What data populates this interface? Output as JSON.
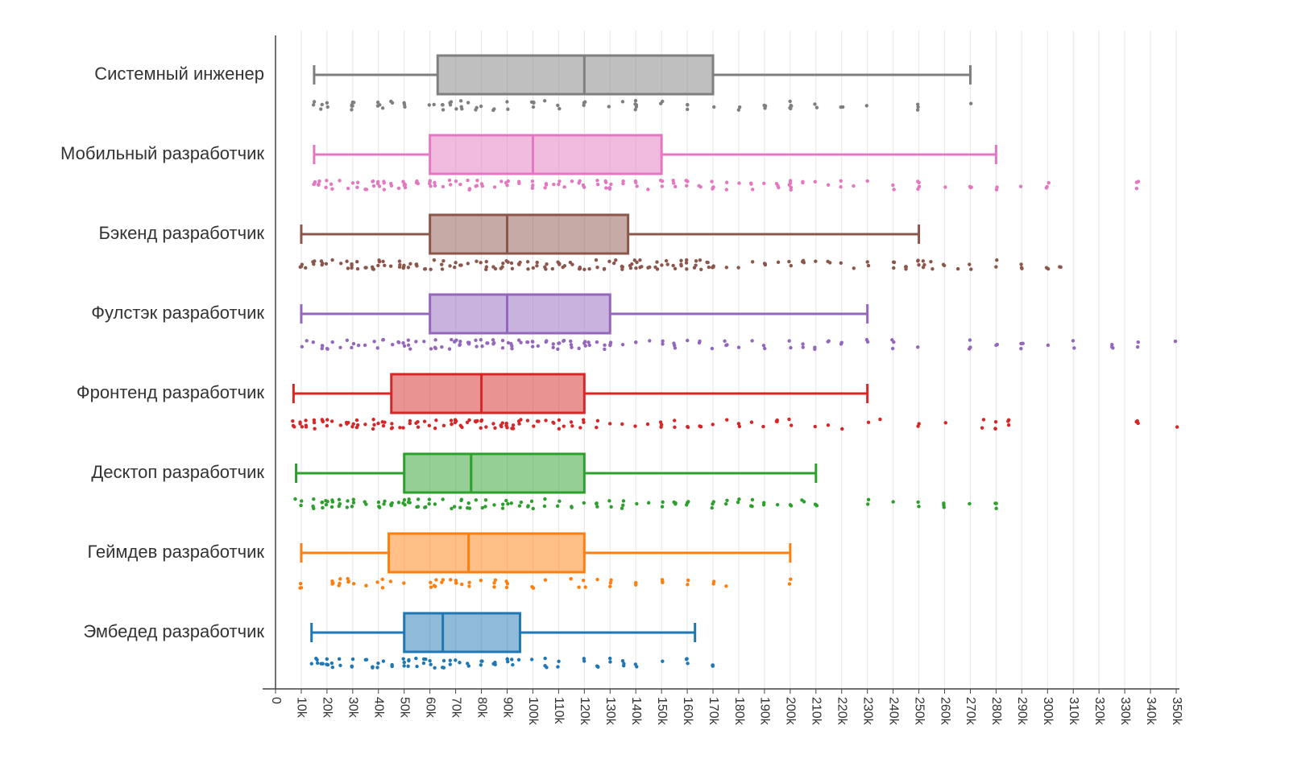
{
  "chart_data": {
    "type": "box",
    "orientation": "horizontal",
    "grid": true,
    "xlim": [
      0,
      350000
    ],
    "x_ticks": [
      0,
      10000,
      20000,
      30000,
      40000,
      50000,
      60000,
      70000,
      80000,
      90000,
      100000,
      110000,
      120000,
      130000,
      140000,
      150000,
      160000,
      170000,
      180000,
      190000,
      200000,
      210000,
      220000,
      230000,
      240000,
      250000,
      260000,
      270000,
      280000,
      290000,
      300000,
      310000,
      320000,
      330000,
      340000,
      350000
    ],
    "x_tick_labels": [
      "0",
      "10k",
      "20k",
      "30k",
      "40k",
      "50k",
      "60k",
      "70k",
      "80k",
      "90k",
      "100k",
      "110k",
      "120k",
      "130k",
      "140k",
      "150k",
      "160k",
      "170k",
      "180k",
      "190k",
      "200k",
      "210k",
      "220k",
      "230k",
      "240k",
      "250k",
      "260k",
      "270k",
      "280k",
      "290k",
      "300k",
      "310k",
      "320k",
      "330k",
      "340k",
      "350k"
    ],
    "series": [
      {
        "name": "Системный инженер",
        "color": "#7f7f7f",
        "whisker_low": 15000,
        "q1": 63000,
        "median": 120000,
        "q3": 170000,
        "whisker_high": 270000,
        "points": [
          15000,
          18000,
          20000,
          20000,
          30000,
          30000,
          40000,
          42000,
          45000,
          50000,
          60000,
          62000,
          65000,
          68000,
          70000,
          72000,
          75000,
          78000,
          80000,
          85000,
          90000,
          100000,
          100000,
          105000,
          110000,
          120000,
          120000,
          120000,
          130000,
          135000,
          140000,
          140000,
          150000,
          150000,
          160000,
          160000,
          170000,
          180000,
          190000,
          200000,
          200000,
          210000,
          220000,
          230000,
          250000,
          250000,
          270000
        ]
      },
      {
        "name": "Мобильный разработчик",
        "color": "#e377c2",
        "whisker_low": 15000,
        "q1": 60000,
        "median": 100000,
        "q3": 150000,
        "whisker_high": 280000,
        "points": [
          15000,
          17000,
          20000,
          22000,
          25000,
          28000,
          30000,
          32000,
          35000,
          38000,
          40000,
          42000,
          45000,
          48000,
          50000,
          50000,
          55000,
          60000,
          60000,
          62000,
          65000,
          68000,
          70000,
          72000,
          75000,
          78000,
          80000,
          80000,
          85000,
          88000,
          90000,
          90000,
          95000,
          100000,
          100000,
          105000,
          108000,
          110000,
          112000,
          115000,
          118000,
          120000,
          120000,
          125000,
          128000,
          130000,
          130000,
          135000,
          140000,
          140000,
          145000,
          150000,
          150000,
          155000,
          160000,
          160000,
          165000,
          170000,
          170000,
          175000,
          180000,
          185000,
          190000,
          195000,
          200000,
          200000,
          205000,
          210000,
          215000,
          220000,
          225000,
          230000,
          240000,
          250000,
          250000,
          260000,
          270000,
          280000,
          290000,
          300000,
          335000
        ]
      },
      {
        "name": "Бэкенд разработчик",
        "color": "#8c564b",
        "whisker_low": 10000,
        "q1": 60000,
        "median": 90000,
        "q3": 137000,
        "whisker_high": 250000,
        "points": [
          10000,
          12000,
          15000,
          18000,
          20000,
          22000,
          25000,
          28000,
          30000,
          32000,
          35000,
          38000,
          40000,
          42000,
          45000,
          48000,
          50000,
          52000,
          55000,
          58000,
          60000,
          62000,
          65000,
          68000,
          70000,
          72000,
          75000,
          78000,
          80000,
          82000,
          85000,
          88000,
          90000,
          92000,
          95000,
          98000,
          100000,
          102000,
          105000,
          108000,
          110000,
          112000,
          115000,
          118000,
          120000,
          122000,
          125000,
          128000,
          130000,
          132000,
          135000,
          138000,
          140000,
          142000,
          145000,
          148000,
          150000,
          152000,
          155000,
          158000,
          160000,
          163000,
          165000,
          168000,
          170000,
          175000,
          180000,
          185000,
          190000,
          195000,
          200000,
          205000,
          210000,
          215000,
          220000,
          225000,
          230000,
          240000,
          245000,
          250000,
          252000,
          255000,
          260000,
          265000,
          270000,
          280000,
          290000,
          300000,
          305000
        ]
      },
      {
        "name": "Фулстэк разработчик",
        "color": "#9467bd",
        "whisker_low": 10000,
        "q1": 60000,
        "median": 90000,
        "q3": 130000,
        "whisker_high": 230000,
        "points": [
          10000,
          12000,
          15000,
          18000,
          20000,
          22000,
          25000,
          28000,
          30000,
          32000,
          35000,
          38000,
          40000,
          42000,
          45000,
          48000,
          50000,
          52000,
          55000,
          58000,
          60000,
          62000,
          65000,
          68000,
          70000,
          72000,
          75000,
          78000,
          80000,
          82000,
          85000,
          88000,
          90000,
          92000,
          95000,
          98000,
          100000,
          102000,
          105000,
          108000,
          110000,
          112000,
          115000,
          118000,
          120000,
          122000,
          125000,
          128000,
          130000,
          135000,
          140000,
          145000,
          150000,
          155000,
          160000,
          165000,
          170000,
          175000,
          180000,
          185000,
          190000,
          200000,
          205000,
          210000,
          215000,
          220000,
          230000,
          240000,
          250000,
          270000,
          280000,
          290000,
          300000,
          310000,
          325000,
          335000,
          350000
        ]
      },
      {
        "name": "Фронтенд разработчик",
        "color": "#d62728",
        "whisker_low": 7000,
        "q1": 45000,
        "median": 80000,
        "q3": 120000,
        "whisker_high": 230000,
        "points": [
          7000,
          10000,
          12000,
          15000,
          18000,
          20000,
          22000,
          25000,
          28000,
          30000,
          32000,
          35000,
          38000,
          40000,
          42000,
          45000,
          48000,
          50000,
          52000,
          55000,
          58000,
          60000,
          62000,
          65000,
          68000,
          70000,
          72000,
          75000,
          78000,
          80000,
          82000,
          85000,
          88000,
          90000,
          92000,
          95000,
          98000,
          100000,
          102000,
          105000,
          108000,
          110000,
          112000,
          115000,
          118000,
          120000,
          125000,
          130000,
          135000,
          140000,
          145000,
          150000,
          155000,
          160000,
          165000,
          170000,
          175000,
          180000,
          185000,
          190000,
          195000,
          200000,
          210000,
          215000,
          220000,
          230000,
          235000,
          250000,
          260000,
          275000,
          280000,
          285000,
          335000,
          350000
        ]
      },
      {
        "name": "Десктоп разработчик",
        "color": "#2ca02c",
        "whisker_low": 8000,
        "q1": 50000,
        "median": 76000,
        "q3": 120000,
        "whisker_high": 210000,
        "points": [
          8000,
          10000,
          15000,
          18000,
          20000,
          22000,
          25000,
          28000,
          30000,
          35000,
          40000,
          42000,
          45000,
          48000,
          50000,
          52000,
          55000,
          58000,
          60000,
          62000,
          65000,
          68000,
          70000,
          72000,
          75000,
          78000,
          80000,
          82000,
          85000,
          88000,
          90000,
          92000,
          95000,
          98000,
          100000,
          105000,
          110000,
          115000,
          120000,
          125000,
          130000,
          135000,
          140000,
          145000,
          150000,
          155000,
          160000,
          170000,
          175000,
          180000,
          185000,
          190000,
          195000,
          200000,
          205000,
          210000,
          230000,
          240000,
          250000,
          260000,
          270000,
          280000
        ]
      },
      {
        "name": "Геймдев разработчик",
        "color": "#ff7f0e",
        "whisker_low": 10000,
        "q1": 44000,
        "median": 75000,
        "q3": 120000,
        "whisker_high": 200000,
        "points": [
          10000,
          22000,
          25000,
          28000,
          30000,
          35000,
          40000,
          42000,
          45000,
          50000,
          60000,
          62000,
          65000,
          68000,
          70000,
          72000,
          75000,
          80000,
          85000,
          90000,
          100000,
          105000,
          115000,
          118000,
          120000,
          125000,
          130000,
          140000,
          150000,
          160000,
          170000,
          175000,
          200000
        ]
      },
      {
        "name": "Эмбедед разработчик",
        "color": "#1f77b4",
        "whisker_low": 14000,
        "q1": 50000,
        "median": 65000,
        "q3": 95000,
        "whisker_high": 163000,
        "points": [
          14000,
          16000,
          18000,
          20000,
          22000,
          25000,
          30000,
          35000,
          38000,
          40000,
          42000,
          45000,
          50000,
          52000,
          55000,
          58000,
          60000,
          62000,
          65000,
          68000,
          70000,
          72000,
          75000,
          80000,
          85000,
          90000,
          92000,
          95000,
          100000,
          105000,
          110000,
          120000,
          125000,
          130000,
          135000,
          140000,
          150000,
          160000,
          170000
        ]
      }
    ]
  }
}
